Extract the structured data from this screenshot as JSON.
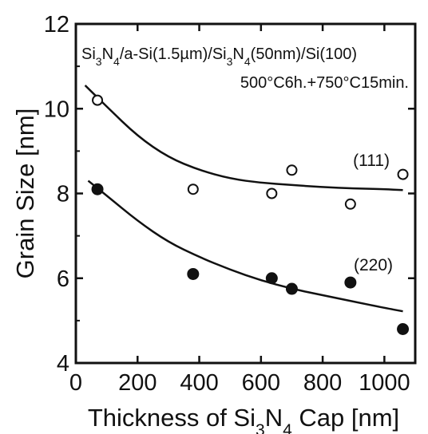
{
  "chart_data": {
    "type": "scatter",
    "xlabel": [
      "Thickness of Si",
      "3",
      "N",
      "4",
      " Cap [nm]"
    ],
    "ylabel": "Grain Size [nm]",
    "xlim": [
      0,
      1100
    ],
    "ylim": [
      4,
      12
    ],
    "xticks": [
      0,
      200,
      400,
      600,
      800,
      1000
    ],
    "yticks": [
      4,
      6,
      8,
      10,
      12
    ],
    "grid": false,
    "annotations": {
      "structure": [
        "Si",
        "3",
        "N",
        "4",
        "/a-Si(1.5µm)/Si",
        "3",
        "N",
        "4",
        "(50nm)/Si(100)"
      ],
      "anneal": "500°C6h.+750°C15min."
    },
    "series": [
      {
        "name": "(111)",
        "marker": "open-circle",
        "x": [
          70,
          380,
          635,
          700,
          890,
          1060
        ],
        "y": [
          10.2,
          8.1,
          8.0,
          8.55,
          7.75,
          8.45
        ],
        "fit": {
          "x": [
            30,
            100,
            200,
            300,
            400,
            500,
            600,
            700,
            800,
            900,
            1000,
            1060
          ],
          "y": [
            10.55,
            10.05,
            9.35,
            8.85,
            8.55,
            8.35,
            8.25,
            8.2,
            8.15,
            8.12,
            8.1,
            8.08
          ]
        }
      },
      {
        "name": "(220)",
        "marker": "filled-circle",
        "x": [
          70,
          380,
          635,
          700,
          890,
          1060
        ],
        "y": [
          8.1,
          6.1,
          6.0,
          5.75,
          5.9,
          4.8
        ],
        "fit": {
          "x": [
            40,
            100,
            200,
            300,
            400,
            500,
            600,
            700,
            800,
            900,
            1000,
            1060
          ],
          "y": [
            8.3,
            7.95,
            7.35,
            6.85,
            6.5,
            6.2,
            5.95,
            5.75,
            5.6,
            5.45,
            5.3,
            5.22
          ]
        }
      }
    ]
  }
}
